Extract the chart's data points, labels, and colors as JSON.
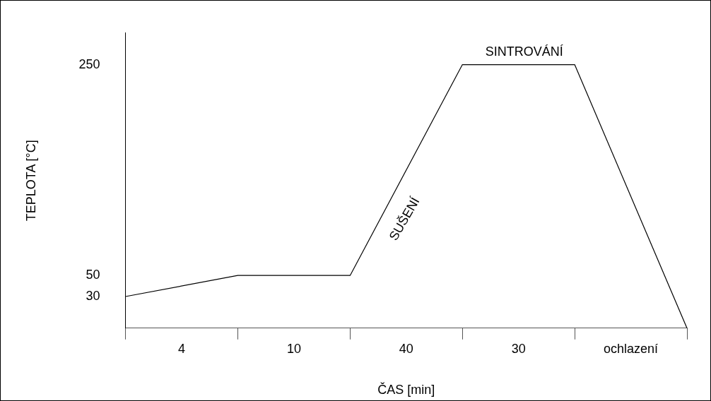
{
  "chart_data": {
    "type": "line",
    "xlabel": "ČAS [min]",
    "ylabel": "TEPLOTA [°C]",
    "categories": [
      null,
      null,
      null,
      null,
      null,
      null
    ],
    "series": [
      {
        "color": "#000000",
        "values": [
          30,
          50,
          50,
          250,
          250,
          0
        ]
      }
    ],
    "ylim": [
      0,
      280
    ],
    "yticks": [
      30,
      50,
      250
    ],
    "annotations": [
      "4",
      "10",
      "40",
      "30",
      "ochlazení",
      "SUŠENÍ",
      "SINTROVÁNÍ"
    ],
    "marker": "none",
    "grid": false,
    "legend": false,
    "line_style": "solid"
  }
}
